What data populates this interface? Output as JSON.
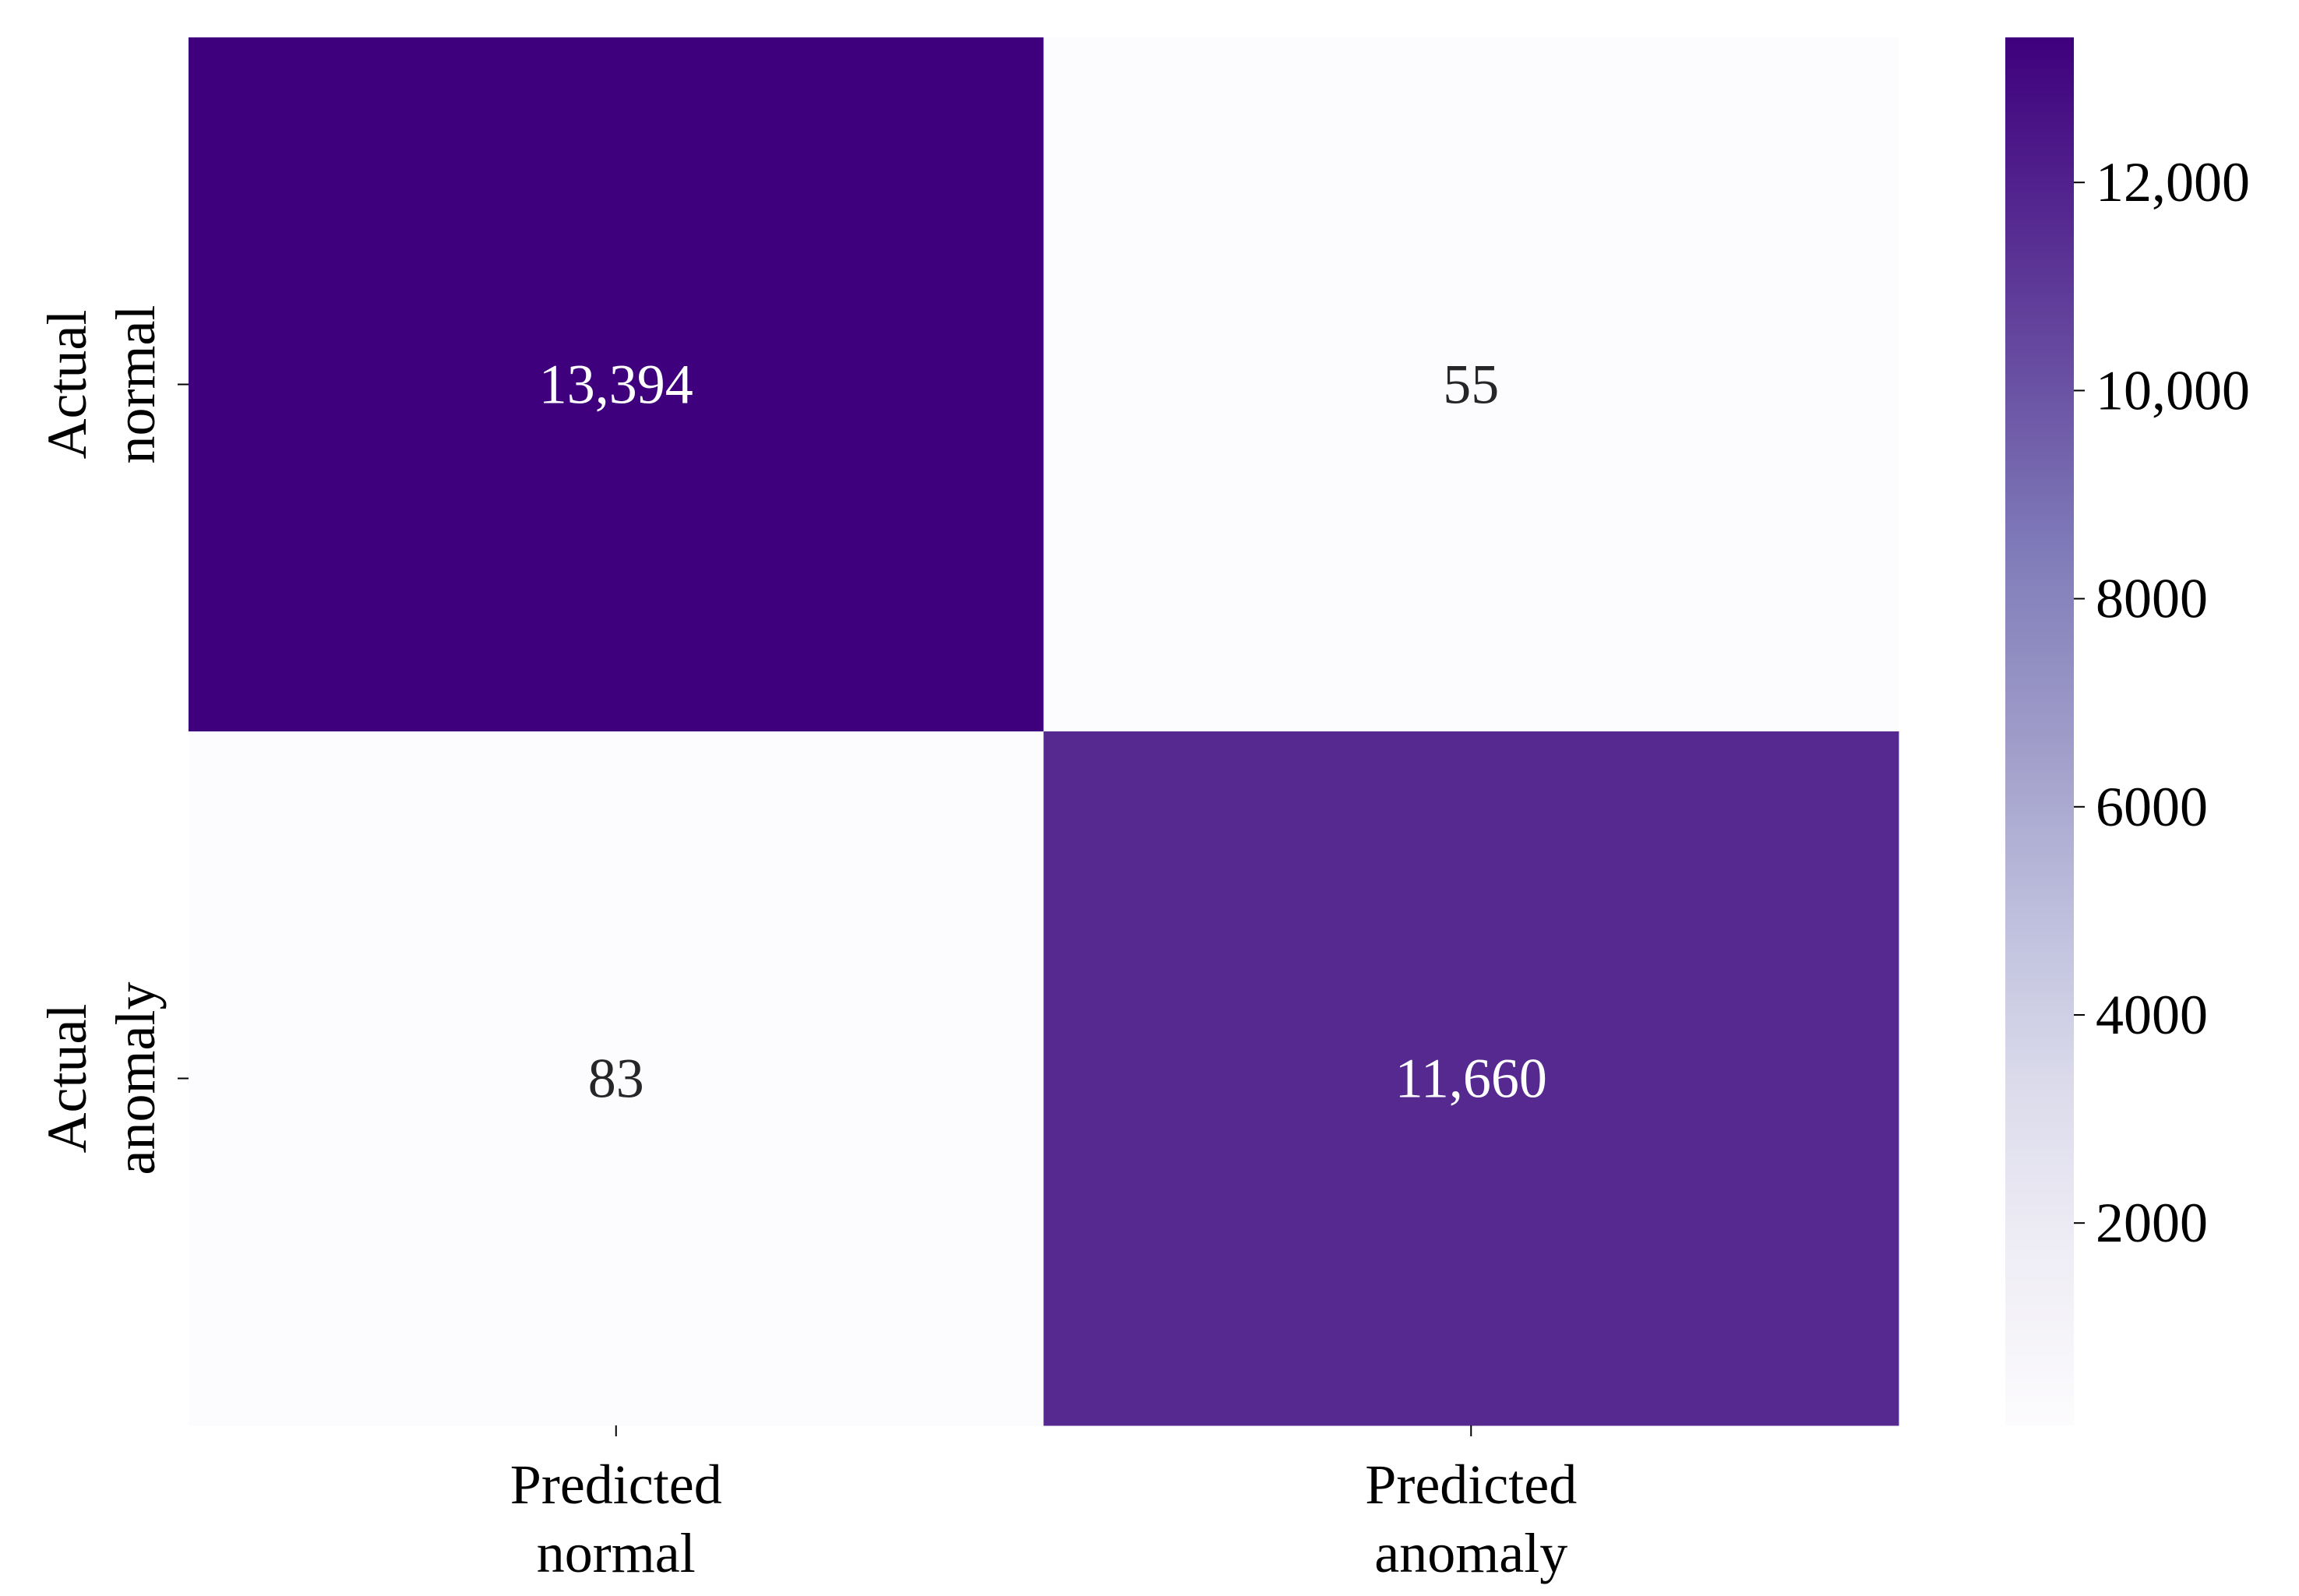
{
  "chart_data": {
    "type": "heatmap",
    "title": "",
    "xlabel": "",
    "ylabel": "",
    "x_categories": [
      [
        "Predicted",
        "normal"
      ],
      [
        "Predicted",
        "anomaly"
      ]
    ],
    "y_categories": [
      [
        "Actual",
        "normal"
      ],
      [
        "Actual",
        "anomaly"
      ]
    ],
    "values": [
      [
        13394,
        55
      ],
      [
        83,
        11660
      ]
    ],
    "value_labels": [
      [
        "13,394",
        "55"
      ],
      [
        "83",
        "11,660"
      ]
    ],
    "colormap": "Purples",
    "colormap_stops": [
      "#fcfbfd",
      "#efedf5",
      "#dadaeb",
      "#bcbddc",
      "#9e9ac8",
      "#807dba",
      "#6a51a3",
      "#54278f",
      "#3f007d"
    ],
    "colorbar": {
      "min": 55,
      "max": 13394,
      "ticks": [
        2000,
        4000,
        6000,
        8000,
        10000,
        12000
      ],
      "tick_labels": [
        "2000",
        "4000",
        "6000",
        "8000",
        "10,000",
        "12,000"
      ]
    },
    "annotation_colors": {
      "dark_cell_text": "#ffffff",
      "light_cell_text": "#262626"
    }
  }
}
